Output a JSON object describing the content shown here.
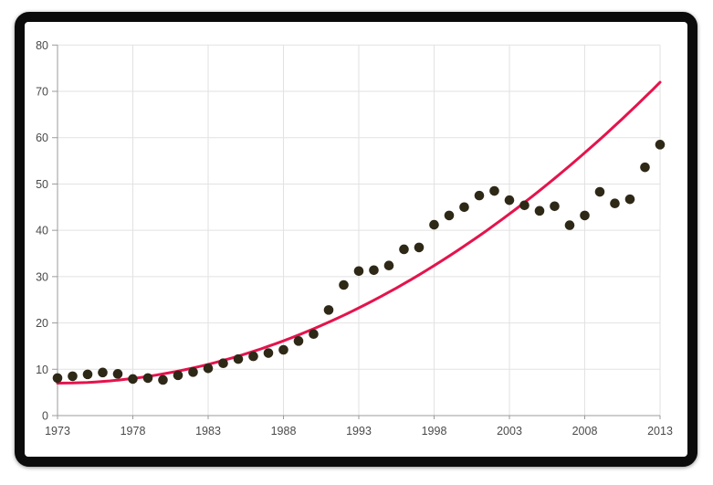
{
  "window": {
    "title": "chart-window",
    "frame_color": "#0b0b0b",
    "background": "#ffffff"
  },
  "chart_data": {
    "type": "scatter",
    "title": "",
    "xlabel": "",
    "ylabel": "",
    "xlim": [
      1973,
      2013
    ],
    "ylim": [
      0,
      80
    ],
    "x_tick_labels": [
      "1973",
      "1978",
      "1983",
      "1988",
      "1993",
      "1998",
      "2003",
      "2008",
      "2013"
    ],
    "x_tick_values": [
      1973,
      1978,
      1983,
      1988,
      1993,
      1998,
      2003,
      2008,
      2013
    ],
    "y_tick_labels": [
      "0",
      "10",
      "20",
      "30",
      "40",
      "50",
      "60",
      "70",
      "80"
    ],
    "y_tick_values": [
      0,
      10,
      20,
      30,
      40,
      50,
      60,
      70,
      80
    ],
    "grid": true,
    "legend": false,
    "series": [
      {
        "name": "observed-points",
        "type": "scatter",
        "color": "#2e2817",
        "marker_radius": 5.3,
        "x": [
          1973,
          1974,
          1975,
          1976,
          1977,
          1978,
          1979,
          1980,
          1981,
          1982,
          1983,
          1984,
          1985,
          1986,
          1987,
          1988,
          1989,
          1990,
          1991,
          1992,
          1993,
          1994,
          1995,
          1996,
          1997,
          1998,
          1999,
          2000,
          2001,
          2002,
          2003,
          2004,
          2005,
          2006,
          2007,
          2008,
          2009,
          2010,
          2011,
          2012,
          2013
        ],
        "y": [
          8.1,
          8.5,
          8.9,
          9.3,
          9.0,
          7.9,
          8.1,
          7.7,
          8.7,
          9.4,
          10.2,
          11.3,
          12.2,
          12.8,
          13.5,
          14.2,
          16.1,
          17.6,
          22.8,
          28.2,
          31.2,
          31.4,
          32.4,
          35.9,
          36.3,
          41.2,
          43.2,
          45.0,
          47.5,
          48.5,
          46.5,
          45.4,
          44.2,
          45.2,
          41.1,
          43.2,
          48.3,
          45.8,
          46.7,
          53.6,
          58.5
        ]
      },
      {
        "name": "trend-line",
        "type": "line",
        "color": "#e5134c",
        "stroke_width": 3,
        "model": "quadratic",
        "base_value": 7.0,
        "quad_coeff": 0.0406,
        "t_origin": 1973,
        "endpoints": {
          "value_1973": 7.0,
          "value_2013": 72.0
        }
      }
    ],
    "style": {
      "grid_color": "#e2e2e2",
      "axis_color": "#9b9b9b",
      "tick_color": "#9b9b9b",
      "label_color": "#4a4a4a",
      "plot_background": "#ffffff"
    }
  }
}
